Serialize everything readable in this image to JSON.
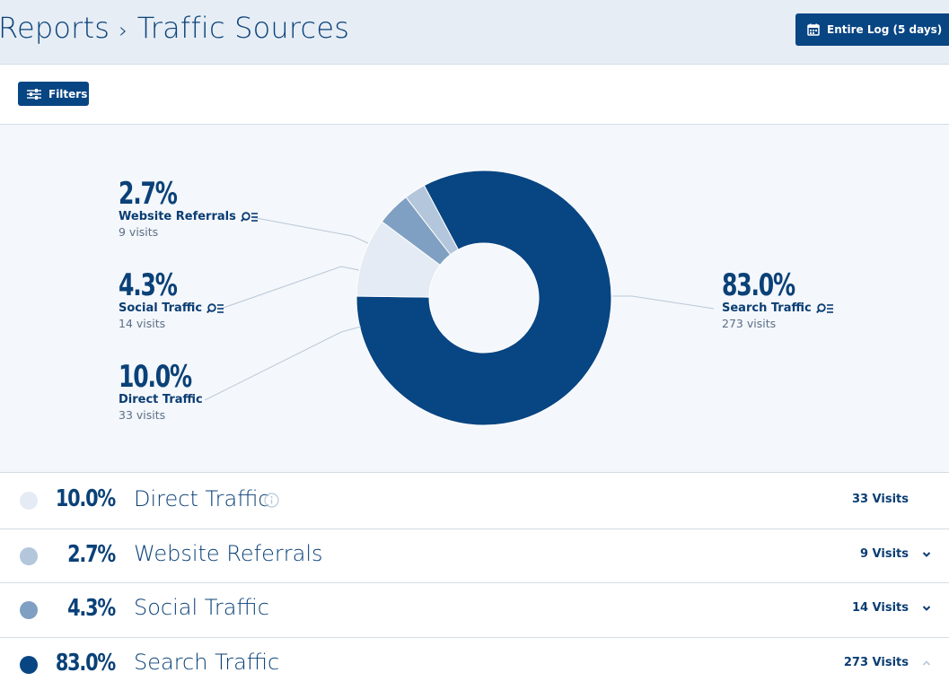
{
  "header": {
    "breadcrumb_root": "Reports",
    "breadcrumb_sep": "›",
    "breadcrumb_page": "Traffic Sources",
    "date_range_label": "Entire Log (5 days)"
  },
  "toolbar": {
    "filters_label": "Filters"
  },
  "colors": {
    "accent": "#084583",
    "search": "#084583",
    "direct": "#e4ebf4",
    "referrals": "#b3c6db",
    "social": "#7fa0c2"
  },
  "chart_data": {
    "type": "pie",
    "donut": true,
    "slices": [
      {
        "name": "Search Traffic",
        "percent": 83.0,
        "visits": 273
      },
      {
        "name": "Direct Traffic",
        "percent": 10.0,
        "visits": 33
      },
      {
        "name": "Social Traffic",
        "percent": 4.3,
        "visits": 14
      },
      {
        "name": "Website Referrals",
        "percent": 2.7,
        "visits": 9
      }
    ]
  },
  "callouts": {
    "referrals": {
      "pct": "2.7%",
      "name": "Website Referrals",
      "visits": "9 visits",
      "icon": "search-list-icon"
    },
    "social": {
      "pct": "4.3%",
      "name": "Social Traffic",
      "visits": "14 visits",
      "icon": "search-list-icon"
    },
    "direct": {
      "pct": "10.0%",
      "name": "Direct Traffic",
      "visits": "33 visits"
    },
    "search": {
      "pct": "83.0%",
      "name": "Search Traffic",
      "visits": "273 visits",
      "icon": "search-list-icon"
    }
  },
  "rows": [
    {
      "pct": "10.0%",
      "name": "Direct Traffic",
      "visits": "33 Visits",
      "icon": "info-icon"
    },
    {
      "pct": "2.7%",
      "name": "Website Referrals",
      "visits": "9 Visits",
      "icon": "chevron-down-icon"
    },
    {
      "pct": "4.3%",
      "name": "Social Traffic",
      "visits": "14 Visits",
      "icon": "chevron-down-icon"
    },
    {
      "pct": "83.0%",
      "name": "Search Traffic",
      "visits": "273 Visits",
      "icon": "chevron-up-icon"
    }
  ]
}
